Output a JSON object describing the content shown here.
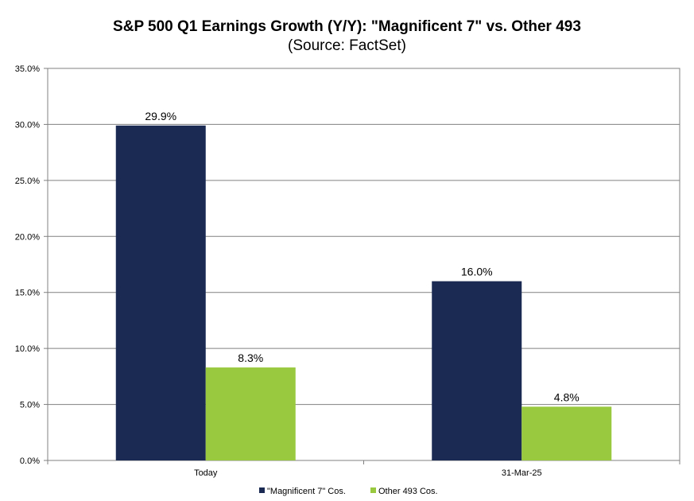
{
  "chart_data": {
    "type": "bar",
    "title": "S&P 500 Q1 Earnings Growth (Y/Y): \"Magnificent 7\" vs. Other 493",
    "subtitle": "(Source: FactSet)",
    "xlabel": "",
    "ylabel": "",
    "categories": [
      "Today",
      "31-Mar-25"
    ],
    "series": [
      {
        "name": "\"Magnificent 7\" Cos.",
        "color": "#1a2a53",
        "values": [
          29.9,
          16.0
        ],
        "labels": [
          "29.9%",
          "16.0%"
        ]
      },
      {
        "name": "Other 493 Cos.",
        "color": "#99c93e",
        "values": [
          8.3,
          4.8
        ],
        "labels": [
          "8.3%",
          "4.8%"
        ]
      }
    ],
    "ylim": [
      0,
      35
    ],
    "yticks": [
      0,
      5,
      10,
      15,
      20,
      25,
      30,
      35
    ],
    "ytick_labels": [
      "0.0%",
      "5.0%",
      "10.0%",
      "15.0%",
      "20.0%",
      "25.0%",
      "30.0%",
      "35.0%"
    ],
    "grid": true,
    "legend_position": "bottom-center"
  }
}
